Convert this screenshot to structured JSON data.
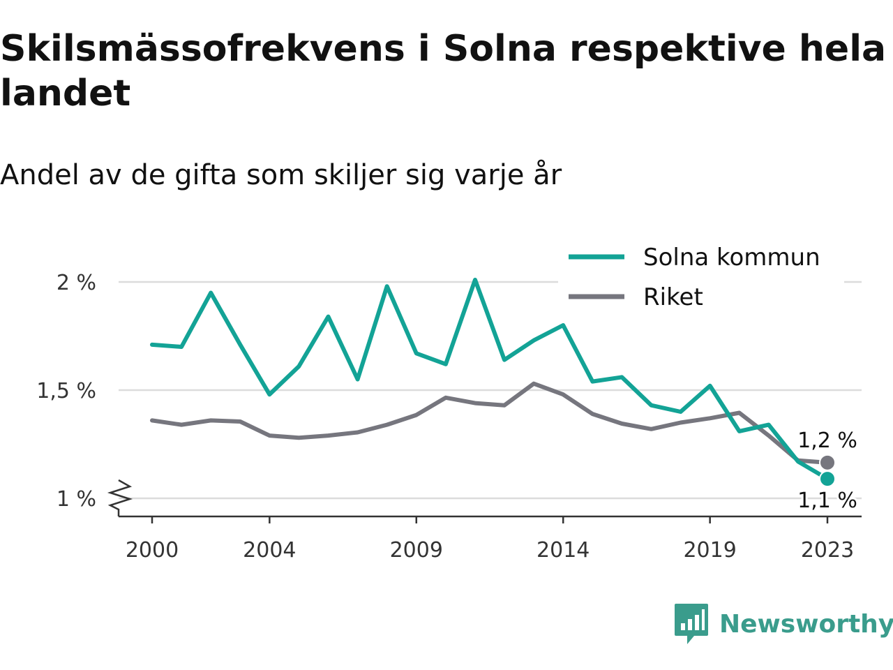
{
  "header": {
    "title": "Skilsmässofrekvens i Solna respektive hela landet",
    "subtitle": "Andel av de gifta som skiljer sig varje år"
  },
  "brand": {
    "name": "Newsworthy",
    "color": "#3a9c8c",
    "icon": "newsworthy-chart-bubble-icon"
  },
  "chart_data": {
    "type": "line",
    "x": [
      2000,
      2001,
      2002,
      2003,
      2004,
      2005,
      2006,
      2007,
      2008,
      2009,
      2010,
      2011,
      2012,
      2013,
      2014,
      2015,
      2016,
      2017,
      2018,
      2019,
      2020,
      2021,
      2022,
      2023
    ],
    "xticks": [
      2000,
      2004,
      2009,
      2014,
      2019,
      2023
    ],
    "yticks": [
      1,
      1.5,
      2
    ],
    "ytick_labels": [
      "1 %",
      "1,5 %",
      "2 %"
    ],
    "ylim": [
      1,
      2
    ],
    "y_axis_break": true,
    "grid": true,
    "legend_position": "top-right",
    "series": [
      {
        "name": "Solna kommun",
        "color": "#13a396",
        "values": [
          1.71,
          1.7,
          1.95,
          1.71,
          1.48,
          1.61,
          1.84,
          1.55,
          1.98,
          1.67,
          1.62,
          2.01,
          1.64,
          1.73,
          1.8,
          1.54,
          1.56,
          1.43,
          1.4,
          1.52,
          1.31,
          1.34,
          1.17,
          1.09
        ],
        "end_label": "1,1 %"
      },
      {
        "name": "Riket",
        "color": "#76767e",
        "values": [
          1.36,
          1.34,
          1.36,
          1.355,
          1.29,
          1.28,
          1.29,
          1.305,
          1.34,
          1.385,
          1.465,
          1.44,
          1.43,
          1.53,
          1.48,
          1.39,
          1.345,
          1.32,
          1.35,
          1.37,
          1.395,
          1.29,
          1.175,
          1.165
        ],
        "end_label": "1,2 %"
      }
    ]
  }
}
